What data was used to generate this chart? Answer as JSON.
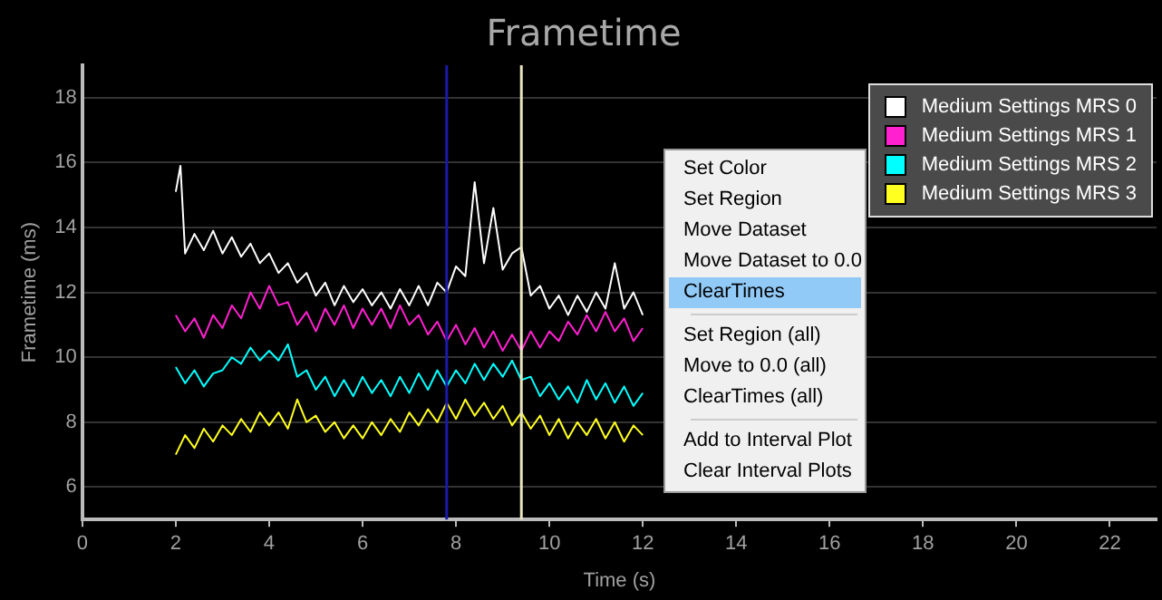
{
  "chart_data": {
    "type": "line",
    "title": "Frametime",
    "xlabel": "Time (s)",
    "ylabel": "Frametime (ms)",
    "x": [
      2.0,
      2.2,
      2.4,
      2.6,
      2.8,
      3.0,
      3.2,
      3.4,
      3.6,
      3.8,
      4.0,
      4.2,
      4.4,
      4.6,
      4.8,
      5.0,
      5.2,
      5.4,
      5.6,
      5.8,
      6.0,
      6.2,
      6.4,
      6.6,
      6.8,
      7.0,
      7.2,
      7.4,
      7.6,
      7.8,
      8.0,
      8.2,
      8.4,
      8.6,
      8.8,
      9.0,
      9.2,
      9.4,
      9.6,
      9.8,
      10.0,
      10.2,
      10.4,
      10.6,
      10.8,
      11.0,
      11.2,
      11.4,
      11.6,
      11.8,
      12.0
    ],
    "series": [
      {
        "name": "Medium Settings MRS 0",
        "color": "#ffffff",
        "x": [
          2.0,
          2.1,
          2.2,
          2.4,
          2.6,
          2.8,
          3.0,
          3.2,
          3.4,
          3.6,
          3.8,
          4.0,
          4.2,
          4.4,
          4.6,
          4.8,
          5.0,
          5.2,
          5.4,
          5.6,
          5.8,
          6.0,
          6.2,
          6.4,
          6.6,
          6.8,
          7.0,
          7.2,
          7.4,
          7.6,
          7.8,
          8.0,
          8.2,
          8.4,
          8.6,
          8.8,
          9.0,
          9.2,
          9.4,
          9.6,
          9.8,
          10.0,
          10.2,
          10.4,
          10.6,
          10.8,
          11.0,
          11.2,
          11.4,
          11.6,
          11.8,
          12.0
        ],
        "values": [
          15.1,
          15.9,
          13.2,
          13.8,
          13.3,
          13.9,
          13.2,
          13.7,
          13.1,
          13.5,
          12.9,
          13.2,
          12.6,
          12.9,
          12.3,
          12.6,
          11.9,
          12.3,
          11.6,
          12.2,
          11.7,
          12.1,
          11.6,
          12.0,
          11.5,
          12.1,
          11.6,
          12.2,
          11.6,
          12.3,
          12.0,
          12.8,
          12.5,
          15.4,
          12.9,
          14.6,
          12.7,
          13.2,
          13.4,
          11.9,
          12.2,
          11.5,
          11.9,
          11.3,
          11.9,
          11.4,
          12.0,
          11.5,
          12.9,
          11.5,
          12.0,
          11.3
        ]
      },
      {
        "name": "Medium Settings MRS 1",
        "color": "#ff20d0",
        "values": [
          11.3,
          10.8,
          11.2,
          10.6,
          11.3,
          10.9,
          11.6,
          11.2,
          12.0,
          11.5,
          12.2,
          11.6,
          11.7,
          11.0,
          11.4,
          10.8,
          11.5,
          11.0,
          11.6,
          10.9,
          11.5,
          11.0,
          11.5,
          10.9,
          11.6,
          11.0,
          11.3,
          10.7,
          11.1,
          10.5,
          11.0,
          10.4,
          10.9,
          10.3,
          10.8,
          10.2,
          10.7,
          10.2,
          10.8,
          10.3,
          10.8,
          10.5,
          11.1,
          10.7,
          11.3,
          10.8,
          11.4,
          10.8,
          11.2,
          10.5,
          10.9
        ]
      },
      {
        "name": "Medium Settings MRS 2",
        "color": "#00ffff",
        "values": [
          9.7,
          9.2,
          9.6,
          9.1,
          9.5,
          9.6,
          10.0,
          9.8,
          10.3,
          9.9,
          10.2,
          9.9,
          10.4,
          9.4,
          9.6,
          9.0,
          9.4,
          8.8,
          9.3,
          8.8,
          9.4,
          8.9,
          9.3,
          8.8,
          9.4,
          8.9,
          9.5,
          9.0,
          9.6,
          9.1,
          9.6,
          9.2,
          9.8,
          9.3,
          9.8,
          9.4,
          9.9,
          9.3,
          9.4,
          8.8,
          9.2,
          8.7,
          9.1,
          8.6,
          9.3,
          8.7,
          9.2,
          8.6,
          9.1,
          8.5,
          8.9
        ]
      },
      {
        "name": "Medium Settings MRS 3",
        "color": "#ffff20",
        "values": [
          7.0,
          7.6,
          7.2,
          7.8,
          7.4,
          7.9,
          7.6,
          8.1,
          7.7,
          8.3,
          7.9,
          8.3,
          7.8,
          8.7,
          8.0,
          8.2,
          7.7,
          8.0,
          7.5,
          7.9,
          7.5,
          8.0,
          7.6,
          8.1,
          7.7,
          8.3,
          7.9,
          8.4,
          8.0,
          8.6,
          8.1,
          8.7,
          8.2,
          8.6,
          8.1,
          8.5,
          7.9,
          8.3,
          7.8,
          8.2,
          7.6,
          8.1,
          7.5,
          8.0,
          7.6,
          8.1,
          7.5,
          8.0,
          7.4,
          7.9,
          7.6
        ]
      }
    ],
    "xlim": [
      0,
      23
    ],
    "xticks": [
      0,
      2,
      4,
      6,
      8,
      10,
      12,
      14,
      16,
      18,
      20,
      22
    ],
    "ylim": [
      5,
      19
    ],
    "yticks": [
      6,
      8,
      10,
      12,
      14,
      16,
      18
    ],
    "ref_lines": [
      {
        "axis": "x",
        "value": 7.8,
        "color": "#1a1aa8"
      },
      {
        "axis": "x",
        "value": 9.4,
        "color": "#e8e4c0"
      }
    ],
    "grid": "y",
    "legend": "top right",
    "marker": "none",
    "line_style": "solid",
    "annotations": [
      "Set Color",
      "Set Region",
      "Move Dataset",
      "Move Dataset to 0.0",
      "ClearTimes",
      "Set Region (all)",
      "Move to 0.0 (all)",
      "ClearTimes (all)",
      "Add to Interval Plot",
      "Clear Interval Plots"
    ]
  }
}
